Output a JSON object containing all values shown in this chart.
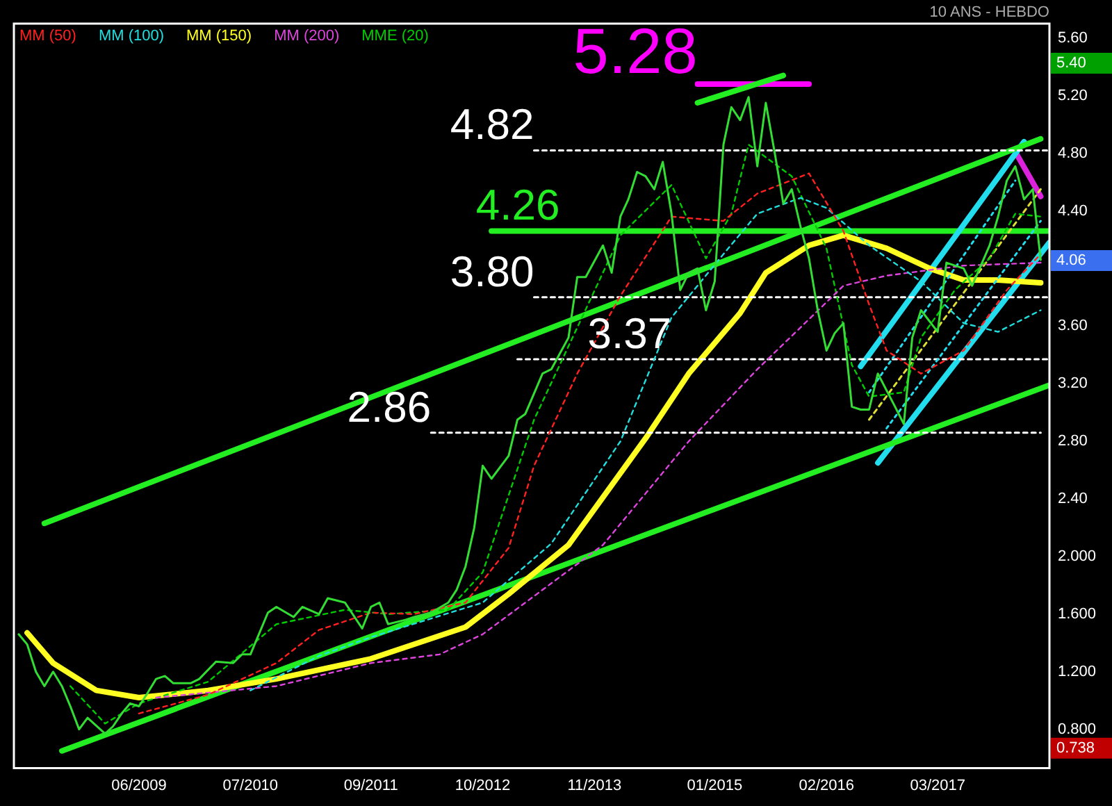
{
  "chart_data": {
    "type": "line",
    "xlim": [
      "2008-03-15",
      "2018-04-01"
    ],
    "xticks": [
      {
        "value": "2009-06",
        "label": "06/2009"
      },
      {
        "value": "2010-07",
        "label": "07/2010"
      },
      {
        "value": "2011-09",
        "label": "09/2011"
      },
      {
        "value": "2012-10",
        "label": "10/2012"
      },
      {
        "value": "2013-11",
        "label": "11/2013"
      },
      {
        "value": "2015-01",
        "label": "01/2015"
      },
      {
        "value": "2016-02",
        "label": "02/2016"
      },
      {
        "value": "2017-03",
        "label": "03/2017"
      }
    ],
    "ylim": [
      0.53,
      5.7
    ],
    "yticks": [
      {
        "value": 0.8,
        "label": "0.800"
      },
      {
        "value": 1.2,
        "label": "1.200"
      },
      {
        "value": 1.6,
        "label": "1.600"
      },
      {
        "value": 2.0,
        "label": "2.000"
      },
      {
        "value": 2.4,
        "label": "2.40"
      },
      {
        "value": 2.8,
        "label": "2.80"
      },
      {
        "value": 3.2,
        "label": "3.20"
      },
      {
        "value": 3.6,
        "label": "3.60"
      },
      {
        "value": 4.4,
        "label": "4.40"
      },
      {
        "value": 4.8,
        "label": "4.80"
      },
      {
        "value": 5.2,
        "label": "5.20"
      },
      {
        "value": 5.6,
        "label": "5.60"
      }
    ],
    "grid": false,
    "legend": "top left",
    "series": [
      {
        "color": "#33dd33",
        "line_style": "solid",
        "x": [
          "2008-04",
          "2008-05",
          "2008-06",
          "2008-07",
          "2008-08",
          "2008-09",
          "2008-10",
          "2008-11",
          "2008-12",
          "2009-02",
          "2009-03",
          "2009-04",
          "2009-05",
          "2009-06",
          "2009-07",
          "2009-08",
          "2009-09",
          "2009-10",
          "2009-12",
          "2010-01",
          "2010-03",
          "2010-05",
          "2010-06",
          "2010-07",
          "2010-09",
          "2010-10",
          "2010-12",
          "2011-01",
          "2011-03",
          "2011-04",
          "2011-06",
          "2011-08",
          "2011-09",
          "2011-10",
          "2011-11",
          "2012-01",
          "2012-02",
          "2012-04",
          "2012-06",
          "2012-07",
          "2012-08",
          "2012-09",
          "2012-10",
          "2012-11",
          "2013-01",
          "2013-02",
          "2013-03",
          "2013-05",
          "2013-06",
          "2013-08",
          "2013-09",
          "2013-10",
          "2013-12",
          "2014-01",
          "2014-02",
          "2014-03",
          "2014-04",
          "2014-05",
          "2014-06",
          "2014-07",
          "2014-08",
          "2014-09",
          "2014-10",
          "2014-11",
          "2014-12",
          "2015-01",
          "2015-02",
          "2015-03",
          "2015-04",
          "2015-05",
          "2015-06",
          "2015-07",
          "2015-08",
          "2015-09",
          "2015-10",
          "2015-11",
          "2015-12",
          "2016-01",
          "2016-02",
          "2016-03",
          "2016-04",
          "2016-05",
          "2016-06",
          "2016-07",
          "2016-08",
          "2016-10",
          "2016-11",
          "2016-12",
          "2017-01",
          "2017-03",
          "2017-04",
          "2017-06",
          "2017-07",
          "2017-09",
          "2017-10",
          "2017-11",
          "2017-12",
          "2018-01",
          "2018-02",
          "2018-03"
        ],
        "values": [
          1.46,
          1.39,
          1.2,
          1.1,
          1.2,
          1.1,
          0.96,
          0.8,
          0.88,
          0.77,
          0.82,
          0.91,
          0.98,
          0.96,
          1.05,
          1.15,
          1.17,
          1.12,
          1.12,
          1.15,
          1.27,
          1.26,
          1.32,
          1.32,
          1.61,
          1.65,
          1.58,
          1.65,
          1.6,
          1.71,
          1.68,
          1.5,
          1.65,
          1.68,
          1.53,
          1.56,
          1.58,
          1.61,
          1.68,
          1.77,
          1.93,
          2.2,
          2.63,
          2.54,
          2.7,
          2.95,
          2.99,
          3.27,
          3.3,
          3.52,
          3.94,
          3.94,
          4.16,
          3.97,
          4.36,
          4.48,
          4.67,
          4.64,
          4.55,
          4.74,
          4.38,
          3.85,
          3.97,
          4.0,
          3.71,
          3.91,
          4.86,
          5.12,
          5.03,
          5.19,
          4.71,
          5.15,
          4.81,
          4.45,
          4.55,
          4.29,
          4.07,
          3.71,
          3.43,
          3.55,
          3.62,
          3.04,
          3.02,
          3.02,
          3.27,
          3.04,
          2.92,
          3.52,
          3.71,
          3.56,
          4.04,
          4.0,
          3.88,
          4.16,
          4.36,
          4.61,
          4.71,
          4.48,
          4.55,
          4.06
        ]
      },
      {
        "name": "MM (50)",
        "color": "#ff2020",
        "line_style": "dashed",
        "x": [
          "2009-06",
          "2010-02",
          "2010-10",
          "2011-03",
          "2011-09",
          "2012-02",
          "2012-08",
          "2013-01",
          "2013-04",
          "2013-09",
          "2014-02",
          "2014-08",
          "2015-02",
          "2015-06",
          "2015-12",
          "2016-04",
          "2016-07",
          "2016-09",
          "2017-01",
          "2017-06",
          "2017-11",
          "2018-03"
        ],
        "values": [
          0.91,
          1.04,
          1.26,
          1.49,
          1.61,
          1.6,
          1.68,
          2.06,
          2.63,
          3.27,
          3.81,
          4.36,
          4.33,
          4.52,
          4.66,
          4.26,
          3.75,
          3.43,
          3.27,
          3.43,
          3.85,
          4.1
        ]
      },
      {
        "name": "MM (100)",
        "color": "#22dddd",
        "line_style": "dashed",
        "x": [
          "2010-07",
          "2011-03",
          "2011-09",
          "2012-10",
          "2013-06",
          "2014-02",
          "2014-08",
          "2015-02",
          "2015-06",
          "2015-11",
          "2016-02",
          "2016-07",
          "2017-01",
          "2017-06",
          "2017-10",
          "2018-03"
        ],
        "values": [
          1.07,
          1.31,
          1.44,
          1.68,
          2.09,
          2.8,
          3.66,
          4.1,
          4.38,
          4.49,
          4.42,
          4.16,
          3.91,
          3.62,
          3.56,
          3.71
        ]
      },
      {
        "name": "MM (150)",
        "color": "#ffff22",
        "line_style": "solid",
        "x": [
          "2008-05",
          "2008-08",
          "2009-01",
          "2009-06",
          "2010-02",
          "2010-10",
          "2011-09",
          "2012-08",
          "2013-01",
          "2013-08",
          "2014-05",
          "2014-10",
          "2015-04",
          "2015-07",
          "2015-12",
          "2016-04",
          "2016-09",
          "2017-02",
          "2017-06",
          "2017-10",
          "2018-03"
        ],
        "values": [
          1.47,
          1.26,
          1.07,
          1.02,
          1.07,
          1.15,
          1.29,
          1.51,
          1.74,
          2.08,
          2.82,
          3.27,
          3.69,
          3.97,
          4.16,
          4.23,
          4.14,
          4.0,
          3.92,
          3.92,
          3.9
        ]
      },
      {
        "name": "MM (200)",
        "color": "#dd44dd",
        "line_style": "dashed",
        "x": [
          "2009-08",
          "2010-10",
          "2011-09",
          "2012-05",
          "2012-10",
          "2013-12",
          "2014-10",
          "2015-06",
          "2015-11",
          "2016-04",
          "2016-09",
          "2017-06",
          "2018-03"
        ],
        "values": [
          1.02,
          1.1,
          1.26,
          1.32,
          1.46,
          2.08,
          2.8,
          3.3,
          3.59,
          3.88,
          3.95,
          4.02,
          4.04
        ]
      },
      {
        "name": "MME (20)",
        "color": "#00cc00",
        "line_style": "dashed",
        "x": [
          "2008-10",
          "2009-02",
          "2009-06",
          "2010-02",
          "2010-10",
          "2011-06",
          "2011-11",
          "2012-06",
          "2012-10",
          "2013-04",
          "2013-09",
          "2014-02",
          "2014-08",
          "2014-12",
          "2015-03",
          "2015-05",
          "2015-10",
          "2016-02",
          "2016-05",
          "2016-07",
          "2016-11",
          "2017-01",
          "2017-05",
          "2017-09",
          "2017-12",
          "2018-03"
        ],
        "values": [
          1.1,
          0.84,
          0.98,
          1.13,
          1.53,
          1.63,
          1.6,
          1.63,
          1.89,
          2.95,
          3.59,
          4.23,
          4.58,
          4.07,
          4.38,
          4.86,
          4.64,
          4.14,
          3.33,
          3.11,
          3.14,
          3.52,
          3.85,
          4.07,
          4.38,
          4.36
        ]
      },
      {
        "color": "#22ee22",
        "line_style": "solid",
        "x": [
          "2008-07",
          "2018-03"
        ],
        "values": [
          2.23,
          4.9
        ]
      },
      {
        "color": "#22ee22",
        "line_style": "solid",
        "x": [
          "2008-09",
          "2018-04"
        ],
        "values": [
          0.65,
          3.19
        ]
      },
      {
        "color": "#22ee22",
        "line_style": "solid",
        "x": [
          "2014-11",
          "2015-09"
        ],
        "values": [
          5.15,
          5.34
        ]
      },
      {
        "color": "#22ddee",
        "line_style": "solid",
        "x": [
          "2016-06",
          "2018-01"
        ],
        "values": [
          3.32,
          4.88
        ]
      },
      {
        "color": "#22ddee",
        "line_style": "solid",
        "x": [
          "2016-08",
          "2018-04"
        ],
        "values": [
          2.65,
          4.18
        ]
      },
      {
        "color": "#22ddee",
        "line_style": "dotted",
        "x": [
          "2016-07",
          "2017-12"
        ],
        "values": [
          3.14,
          4.61
        ]
      },
      {
        "color": "#22ddee",
        "line_style": "dotted",
        "x": [
          "2016-09",
          "2018-03"
        ],
        "values": [
          2.89,
          4.33
        ]
      },
      {
        "color": "#dddd33",
        "line_style": "dashed",
        "x": [
          "2016-07",
          "2018-03"
        ],
        "values": [
          2.95,
          4.55
        ]
      },
      {
        "color": "#dd22dd",
        "line_style": "solid",
        "x": [
          "2017-12",
          "2018-03"
        ],
        "values": [
          4.81,
          4.5
        ]
      },
      {
        "color": "#ff00ff",
        "line_style": "solid",
        "x": [
          "2014-11",
          "2015-12"
        ],
        "values": [
          5.28,
          5.28
        ]
      },
      {
        "color": "#ffffff",
        "line_style": "dashed",
        "x": [
          "2013-04",
          "2018-04"
        ],
        "values": [
          4.82,
          4.82
        ]
      },
      {
        "color": "#22ee22",
        "line_style": "solid",
        "x": [
          "2012-11",
          "2018-04"
        ],
        "values": [
          4.26,
          4.26
        ]
      },
      {
        "color": "#ffffff",
        "line_style": "dashed",
        "x": [
          "2013-04",
          "2018-04"
        ],
        "values": [
          3.8,
          3.8
        ]
      },
      {
        "color": "#ffffff",
        "line_style": "dashed",
        "x": [
          "2013-02",
          "2018-04"
        ],
        "values": [
          3.37,
          3.37
        ]
      },
      {
        "color": "#ffffff",
        "line_style": "dashed",
        "x": [
          "2012-04",
          "2018-03"
        ],
        "values": [
          2.86,
          2.86
        ]
      }
    ],
    "annotations": [
      "10 ANS - HEBDO",
      "5.40",
      "0.738",
      {
        "text": "5.28",
        "x": "2014-11",
        "y": 5.28
      },
      {
        "text": "4.82",
        "x": "2013-04",
        "y": 4.82
      },
      {
        "text": "4.26",
        "x": "2013-07",
        "y": 4.26
      },
      {
        "text": "3.80",
        "x": "2013-04",
        "y": 3.8
      },
      {
        "text": "3.37",
        "x": "2014-08",
        "y": 3.37
      },
      {
        "text": "2.86",
        "x": "2012-04",
        "y": 2.86
      },
      {
        "text": "4.06",
        "x": "2018-03",
        "y": 4.06
      }
    ]
  }
}
